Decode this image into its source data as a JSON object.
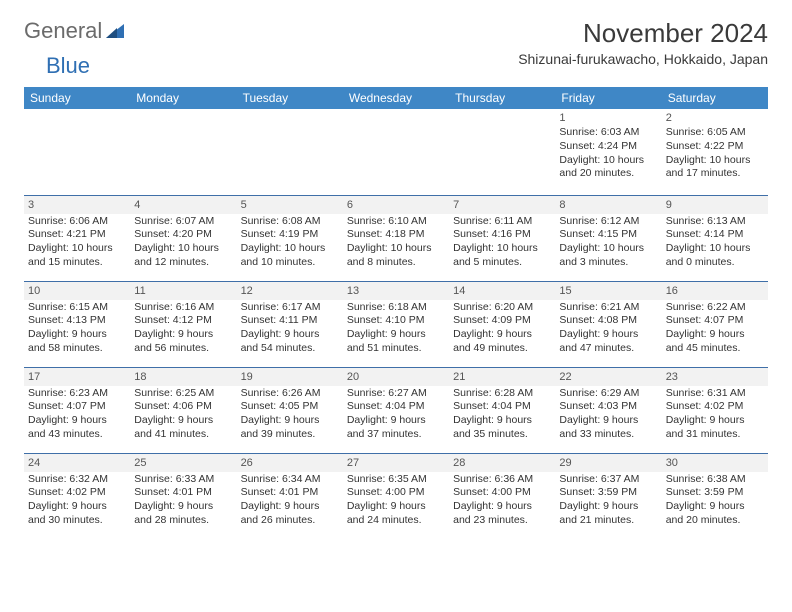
{
  "logo": {
    "word1": "General",
    "word2": "Blue"
  },
  "title": "November 2024",
  "location": "Shizunai-furukawacho, Hokkaido, Japan",
  "colors": {
    "header_bg": "#3f87c6",
    "header_text": "#ffffff",
    "cell_border": "#3f6fa8",
    "shade_bg": "#f2f2f2",
    "logo_gray": "#6b6b6b",
    "logo_blue": "#2f6fb3",
    "text": "#333333"
  },
  "weekdays": [
    "Sunday",
    "Monday",
    "Tuesday",
    "Wednesday",
    "Thursday",
    "Friday",
    "Saturday"
  ],
  "rows": [
    [
      {
        "day": "",
        "sunrise": "",
        "sunset": "",
        "daylight": ""
      },
      {
        "day": "",
        "sunrise": "",
        "sunset": "",
        "daylight": ""
      },
      {
        "day": "",
        "sunrise": "",
        "sunset": "",
        "daylight": ""
      },
      {
        "day": "",
        "sunrise": "",
        "sunset": "",
        "daylight": ""
      },
      {
        "day": "",
        "sunrise": "",
        "sunset": "",
        "daylight": ""
      },
      {
        "day": "1",
        "sunrise": "Sunrise: 6:03 AM",
        "sunset": "Sunset: 4:24 PM",
        "daylight": "Daylight: 10 hours and 20 minutes."
      },
      {
        "day": "2",
        "sunrise": "Sunrise: 6:05 AM",
        "sunset": "Sunset: 4:22 PM",
        "daylight": "Daylight: 10 hours and 17 minutes."
      }
    ],
    [
      {
        "day": "3",
        "sunrise": "Sunrise: 6:06 AM",
        "sunset": "Sunset: 4:21 PM",
        "daylight": "Daylight: 10 hours and 15 minutes."
      },
      {
        "day": "4",
        "sunrise": "Sunrise: 6:07 AM",
        "sunset": "Sunset: 4:20 PM",
        "daylight": "Daylight: 10 hours and 12 minutes."
      },
      {
        "day": "5",
        "sunrise": "Sunrise: 6:08 AM",
        "sunset": "Sunset: 4:19 PM",
        "daylight": "Daylight: 10 hours and 10 minutes."
      },
      {
        "day": "6",
        "sunrise": "Sunrise: 6:10 AM",
        "sunset": "Sunset: 4:18 PM",
        "daylight": "Daylight: 10 hours and 8 minutes."
      },
      {
        "day": "7",
        "sunrise": "Sunrise: 6:11 AM",
        "sunset": "Sunset: 4:16 PM",
        "daylight": "Daylight: 10 hours and 5 minutes."
      },
      {
        "day": "8",
        "sunrise": "Sunrise: 6:12 AM",
        "sunset": "Sunset: 4:15 PM",
        "daylight": "Daylight: 10 hours and 3 minutes."
      },
      {
        "day": "9",
        "sunrise": "Sunrise: 6:13 AM",
        "sunset": "Sunset: 4:14 PM",
        "daylight": "Daylight: 10 hours and 0 minutes."
      }
    ],
    [
      {
        "day": "10",
        "sunrise": "Sunrise: 6:15 AM",
        "sunset": "Sunset: 4:13 PM",
        "daylight": "Daylight: 9 hours and 58 minutes."
      },
      {
        "day": "11",
        "sunrise": "Sunrise: 6:16 AM",
        "sunset": "Sunset: 4:12 PM",
        "daylight": "Daylight: 9 hours and 56 minutes."
      },
      {
        "day": "12",
        "sunrise": "Sunrise: 6:17 AM",
        "sunset": "Sunset: 4:11 PM",
        "daylight": "Daylight: 9 hours and 54 minutes."
      },
      {
        "day": "13",
        "sunrise": "Sunrise: 6:18 AM",
        "sunset": "Sunset: 4:10 PM",
        "daylight": "Daylight: 9 hours and 51 minutes."
      },
      {
        "day": "14",
        "sunrise": "Sunrise: 6:20 AM",
        "sunset": "Sunset: 4:09 PM",
        "daylight": "Daylight: 9 hours and 49 minutes."
      },
      {
        "day": "15",
        "sunrise": "Sunrise: 6:21 AM",
        "sunset": "Sunset: 4:08 PM",
        "daylight": "Daylight: 9 hours and 47 minutes."
      },
      {
        "day": "16",
        "sunrise": "Sunrise: 6:22 AM",
        "sunset": "Sunset: 4:07 PM",
        "daylight": "Daylight: 9 hours and 45 minutes."
      }
    ],
    [
      {
        "day": "17",
        "sunrise": "Sunrise: 6:23 AM",
        "sunset": "Sunset: 4:07 PM",
        "daylight": "Daylight: 9 hours and 43 minutes."
      },
      {
        "day": "18",
        "sunrise": "Sunrise: 6:25 AM",
        "sunset": "Sunset: 4:06 PM",
        "daylight": "Daylight: 9 hours and 41 minutes."
      },
      {
        "day": "19",
        "sunrise": "Sunrise: 6:26 AM",
        "sunset": "Sunset: 4:05 PM",
        "daylight": "Daylight: 9 hours and 39 minutes."
      },
      {
        "day": "20",
        "sunrise": "Sunrise: 6:27 AM",
        "sunset": "Sunset: 4:04 PM",
        "daylight": "Daylight: 9 hours and 37 minutes."
      },
      {
        "day": "21",
        "sunrise": "Sunrise: 6:28 AM",
        "sunset": "Sunset: 4:04 PM",
        "daylight": "Daylight: 9 hours and 35 minutes."
      },
      {
        "day": "22",
        "sunrise": "Sunrise: 6:29 AM",
        "sunset": "Sunset: 4:03 PM",
        "daylight": "Daylight: 9 hours and 33 minutes."
      },
      {
        "day": "23",
        "sunrise": "Sunrise: 6:31 AM",
        "sunset": "Sunset: 4:02 PM",
        "daylight": "Daylight: 9 hours and 31 minutes."
      }
    ],
    [
      {
        "day": "24",
        "sunrise": "Sunrise: 6:32 AM",
        "sunset": "Sunset: 4:02 PM",
        "daylight": "Daylight: 9 hours and 30 minutes."
      },
      {
        "day": "25",
        "sunrise": "Sunrise: 6:33 AM",
        "sunset": "Sunset: 4:01 PM",
        "daylight": "Daylight: 9 hours and 28 minutes."
      },
      {
        "day": "26",
        "sunrise": "Sunrise: 6:34 AM",
        "sunset": "Sunset: 4:01 PM",
        "daylight": "Daylight: 9 hours and 26 minutes."
      },
      {
        "day": "27",
        "sunrise": "Sunrise: 6:35 AM",
        "sunset": "Sunset: 4:00 PM",
        "daylight": "Daylight: 9 hours and 24 minutes."
      },
      {
        "day": "28",
        "sunrise": "Sunrise: 6:36 AM",
        "sunset": "Sunset: 4:00 PM",
        "daylight": "Daylight: 9 hours and 23 minutes."
      },
      {
        "day": "29",
        "sunrise": "Sunrise: 6:37 AM",
        "sunset": "Sunset: 3:59 PM",
        "daylight": "Daylight: 9 hours and 21 minutes."
      },
      {
        "day": "30",
        "sunrise": "Sunrise: 6:38 AM",
        "sunset": "Sunset: 3:59 PM",
        "daylight": "Daylight: 9 hours and 20 minutes."
      }
    ]
  ]
}
